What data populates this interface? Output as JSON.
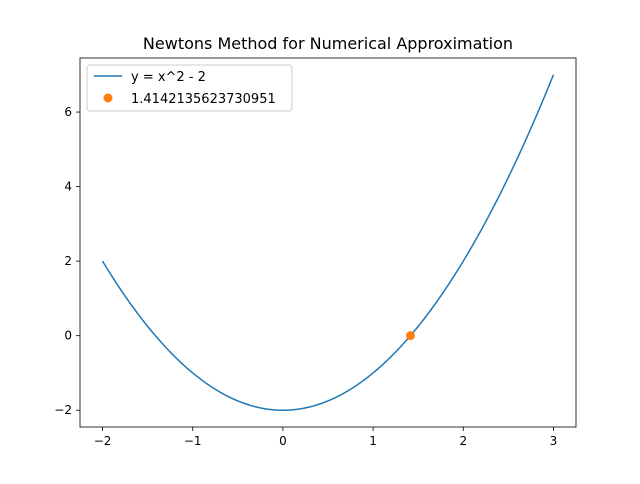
{
  "chart_data": {
    "type": "line",
    "title": "Newtons Method for Numerical Approximation",
    "xlabel": "",
    "ylabel": "",
    "xlim": [
      -2.25,
      3.25
    ],
    "ylim": [
      -2.45,
      7.45
    ],
    "x_ticks": [
      -2,
      -1,
      0,
      1,
      2,
      3
    ],
    "y_ticks": [
      -2,
      0,
      2,
      4,
      6
    ],
    "x_tick_labels": [
      "−2",
      "−1",
      "0",
      "1",
      "2",
      "3"
    ],
    "y_tick_labels": [
      "−2",
      "0",
      "2",
      "4",
      "6"
    ],
    "grid": false,
    "legend_position": "top-left",
    "series": [
      {
        "name": "y = x^2 - 2",
        "kind": "line",
        "color": "#1f77b4",
        "function": "x^2 - 2",
        "x_range": [
          -2,
          3
        ]
      },
      {
        "name": "1.4142135623730951",
        "kind": "point",
        "color": "#ff7f0e",
        "x": [
          1.4142135623730951
        ],
        "y": [
          0
        ]
      }
    ]
  }
}
